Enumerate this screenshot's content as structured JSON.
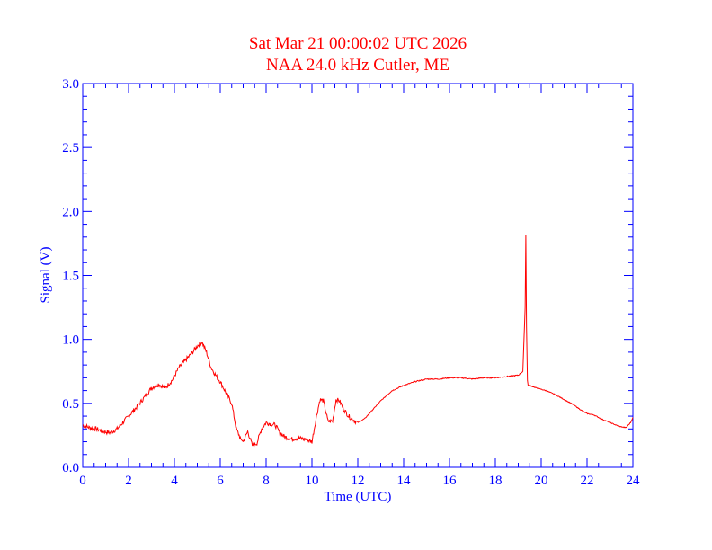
{
  "chart_data": {
    "type": "line",
    "title": "Sat Mar 21 00:00:02 UTC 2026",
    "subtitle": "NAA 24.0 kHz Cutler, ME",
    "xlabel": "Time (UTC)",
    "ylabel": "Signal (V)",
    "xlim": [
      0,
      24
    ],
    "ylim": [
      0,
      3.0
    ],
    "x_ticks": [
      "0",
      "2",
      "4",
      "6",
      "8",
      "10",
      "12",
      "14",
      "16",
      "18",
      "20",
      "22",
      "24"
    ],
    "y_ticks": [
      "0.0",
      "0.5",
      "1.0",
      "1.5",
      "2.0",
      "2.5",
      "3.0"
    ],
    "grid": false,
    "colors": {
      "line": "#ff0000",
      "axes": "#0000ff",
      "title": "#ff0000"
    },
    "series": [
      {
        "x": [
          0,
          0.3,
          0.6,
          0.9,
          1.2,
          1.5,
          1.8,
          2.1,
          2.4,
          2.7,
          3.0,
          3.3,
          3.6,
          3.9,
          4.2,
          4.5,
          4.8,
          5.0,
          5.2,
          5.4,
          5.6,
          5.8,
          6.0,
          6.2,
          6.5,
          6.7,
          6.9,
          7.0,
          7.2,
          7.4,
          7.6,
          7.8,
          8.0,
          8.2,
          8.4,
          8.6,
          8.8,
          9.1,
          9.4,
          9.7,
          10.0,
          10.2,
          10.35,
          10.5,
          10.7,
          10.9,
          11.05,
          11.2,
          11.4,
          11.6,
          11.8,
          12.0,
          12.3,
          12.6,
          13.0,
          13.5,
          14.0,
          14.5,
          15.0,
          15.5,
          16.0,
          16.5,
          17.0,
          17.5,
          18.0,
          18.5,
          19.0,
          19.2,
          19.3,
          19.33,
          19.36,
          19.4,
          19.43,
          19.5,
          19.8,
          20.2,
          20.6,
          21.0,
          21.4,
          21.8,
          22.0,
          22.3,
          22.6,
          23.0,
          23.4,
          23.7,
          23.9,
          24.0
        ],
        "values": [
          0.33,
          0.31,
          0.3,
          0.28,
          0.27,
          0.3,
          0.36,
          0.42,
          0.48,
          0.55,
          0.62,
          0.65,
          0.62,
          0.68,
          0.78,
          0.84,
          0.9,
          0.95,
          0.98,
          0.9,
          0.78,
          0.72,
          0.67,
          0.6,
          0.5,
          0.3,
          0.22,
          0.2,
          0.28,
          0.17,
          0.19,
          0.3,
          0.35,
          0.34,
          0.33,
          0.27,
          0.24,
          0.22,
          0.23,
          0.22,
          0.2,
          0.4,
          0.53,
          0.52,
          0.36,
          0.36,
          0.53,
          0.52,
          0.45,
          0.4,
          0.37,
          0.35,
          0.38,
          0.44,
          0.52,
          0.6,
          0.64,
          0.67,
          0.69,
          0.69,
          0.7,
          0.7,
          0.69,
          0.7,
          0.7,
          0.71,
          0.72,
          0.75,
          1.25,
          1.82,
          1.1,
          0.68,
          0.64,
          0.64,
          0.62,
          0.6,
          0.57,
          0.53,
          0.49,
          0.44,
          0.42,
          0.41,
          0.38,
          0.35,
          0.32,
          0.31,
          0.35,
          0.39
        ]
      }
    ]
  }
}
